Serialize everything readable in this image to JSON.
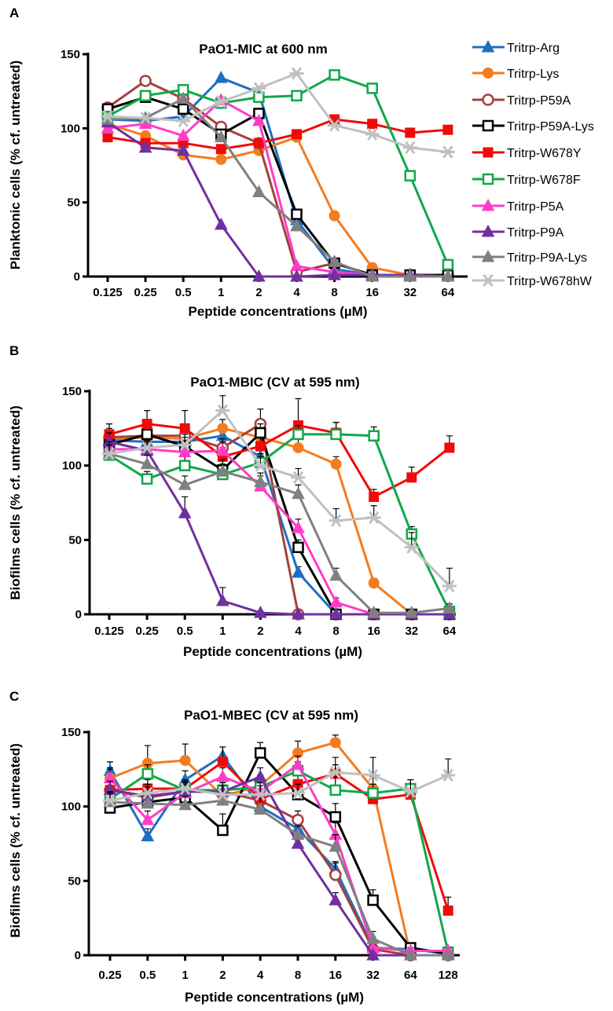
{
  "series_styles": [
    {
      "name": "Tritrp-Arg",
      "color": "#1F6FC0",
      "marker": "triangle",
      "filled": true
    },
    {
      "name": "Tritrp-Lys",
      "color": "#F47C20",
      "marker": "circle",
      "filled": true
    },
    {
      "name": "Tritrp-P59A",
      "color": "#A5403C",
      "marker": "circle",
      "filled": false
    },
    {
      "name": "Tritrp-P59A-Lys",
      "color": "#000000",
      "marker": "square",
      "filled": false
    },
    {
      "name": "Tritrp-W678Y",
      "color": "#F00A0A",
      "marker": "square",
      "filled": true
    },
    {
      "name": "Tritrp-W678F",
      "color": "#10A84A",
      "marker": "square",
      "filled": false
    },
    {
      "name": "Tritrp-P5A",
      "color": "#FF3CC8",
      "marker": "triangle",
      "filled": true
    },
    {
      "name": "Tritrp-P9A",
      "color": "#7030A0",
      "marker": "triangle",
      "filled": true
    },
    {
      "name": "Tritrp-P9A-Lys",
      "color": "#808080",
      "marker": "triangle",
      "filled": true
    },
    {
      "name": "Tritrp-W678hW",
      "color": "#C0C0C0",
      "marker": "asterisk",
      "filled": false
    }
  ],
  "legend_placement": "right of panel A",
  "chart_data": [
    {
      "panel": "A",
      "type": "line",
      "title": "PaO1-MIC at 600 nm",
      "xlabel": "Peptide concentrations (µM)",
      "ylabel": "Planktonic cells (% cf. untreated)",
      "categories": [
        "0.125",
        "0.25",
        "0.5",
        "1",
        "2",
        "4",
        "8",
        "16",
        "32",
        "64"
      ],
      "ylim": [
        0,
        150
      ],
      "yticks": [
        "0",
        "50",
        "100",
        "150"
      ],
      "grid": false,
      "series": [
        {
          "name": "Tritrp-Arg",
          "values": [
            106,
            105,
            108,
            134,
            124,
            38,
            5,
            1,
            1,
            1
          ]
        },
        {
          "name": "Tritrp-Lys",
          "values": [
            103,
            95,
            82,
            79,
            85,
            94,
            41,
            6,
            1,
            1
          ]
        },
        {
          "name": "Tritrp-P59A",
          "values": [
            114,
            132,
            120,
            101,
            90,
            3,
            9,
            1,
            1,
            1
          ]
        },
        {
          "name": "Tritrp-P59A-Lys",
          "values": [
            113,
            121,
            113,
            96,
            110,
            42,
            9,
            1,
            1,
            1
          ]
        },
        {
          "name": "Tritrp-W678Y",
          "values": [
            94,
            90,
            90,
            86,
            90,
            96,
            106,
            103,
            97,
            99
          ]
        },
        {
          "name": "Tritrp-W678F",
          "values": [
            108,
            122,
            126,
            117,
            121,
            122,
            136,
            127,
            68,
            8
          ]
        },
        {
          "name": "Tritrp-P5A",
          "values": [
            100,
            103,
            95,
            119,
            105,
            7,
            3,
            1,
            1,
            0
          ]
        },
        {
          "name": "Tritrp-P9A",
          "values": [
            104,
            87,
            85,
            35,
            0,
            0,
            1,
            1,
            1,
            0
          ]
        },
        {
          "name": "Tritrp-P9A-Lys",
          "values": [
            106,
            107,
            120,
            94,
            57,
            34,
            10,
            0,
            0,
            0
          ]
        },
        {
          "name": "Tritrp-W678hW",
          "values": [
            108,
            107,
            105,
            118,
            127,
            137,
            102,
            96,
            87,
            84
          ]
        }
      ]
    },
    {
      "panel": "B",
      "type": "line",
      "title": "PaO1-MBIC (CV at 595 nm)",
      "xlabel": "Peptide concentrations (µM)",
      "ylabel": "Biofilms cells (% cf. untreated)",
      "categories": [
        "0.125",
        "0.25",
        "0.5",
        "1",
        "2",
        "4",
        "8",
        "16",
        "32",
        "64"
      ],
      "ylim": [
        0,
        150
      ],
      "yticks": [
        "0",
        "50",
        "100",
        "150"
      ],
      "grid": false,
      "series": [
        {
          "name": "Tritrp-Arg",
          "values": [
            117,
            116,
            116,
            120,
            106,
            28,
            0,
            0,
            0,
            0
          ],
          "yerr": [
            6,
            5,
            6,
            5,
            6,
            4,
            1,
            0,
            0,
            0
          ]
        },
        {
          "name": "Tritrp-Lys",
          "values": [
            118,
            119,
            118,
            125,
            119,
            112,
            101,
            21,
            0,
            0
          ],
          "yerr": [
            6,
            6,
            6,
            6,
            6,
            8,
            5,
            3,
            0,
            0
          ]
        },
        {
          "name": "Tritrp-P59A",
          "values": [
            119,
            120,
            120,
            112,
            128,
            0,
            0,
            0,
            0,
            0
          ],
          "yerr": [
            6,
            6,
            6,
            6,
            10,
            0,
            0,
            0,
            0,
            0
          ]
        },
        {
          "name": "Tritrp-P59A-Lys",
          "values": [
            114,
            121,
            113,
            97,
            122,
            45,
            0,
            0,
            0,
            0
          ],
          "yerr": [
            6,
            6,
            6,
            6,
            6,
            5,
            0,
            0,
            0,
            0
          ]
        },
        {
          "name": "Tritrp-W678Y",
          "values": [
            121,
            128,
            125,
            106,
            113,
            127,
            122,
            79,
            92,
            112
          ],
          "yerr": [
            7,
            9,
            12,
            6,
            6,
            18,
            7,
            5,
            7,
            8
          ]
        },
        {
          "name": "Tritrp-W678F",
          "values": [
            107,
            91,
            100,
            94,
            102,
            121,
            121,
            120,
            54,
            2
          ],
          "yerr": [
            8,
            5,
            8,
            7,
            6,
            6,
            8,
            6,
            5,
            2
          ]
        },
        {
          "name": "Tritrp-P5A",
          "values": [
            111,
            111,
            109,
            110,
            86,
            58,
            8,
            0,
            0,
            0
          ],
          "yerr": [
            6,
            6,
            6,
            6,
            7,
            6,
            3,
            0,
            0,
            0
          ]
        },
        {
          "name": "Tritrp-P9A",
          "values": [
            116,
            110,
            68,
            9,
            1,
            0,
            0,
            0,
            0,
            0
          ],
          "yerr": [
            6,
            6,
            11,
            9,
            1,
            0,
            0,
            0,
            0,
            0
          ]
        },
        {
          "name": "Tritrp-P9A-Lys",
          "values": [
            108,
            101,
            87,
            96,
            89,
            81,
            26,
            1,
            1,
            4
          ],
          "yerr": [
            6,
            6,
            6,
            8,
            6,
            6,
            5,
            1,
            1,
            3
          ]
        },
        {
          "name": "Tritrp-W678hW",
          "values": [
            108,
            112,
            114,
            137,
            100,
            92,
            63,
            65,
            45,
            19
          ],
          "yerr": [
            8,
            6,
            7,
            10,
            6,
            6,
            8,
            8,
            10,
            12
          ]
        }
      ]
    },
    {
      "panel": "C",
      "type": "line",
      "title": "PaO1-MBEC (CV at 595 nm)",
      "xlabel": "Peptide concentrations (µM)",
      "ylabel": "Biofilms cells (% cf. untreated)",
      "categories": [
        "0.25",
        "0.5",
        "1",
        "2",
        "4",
        "8",
        "16",
        "32",
        "64",
        "128"
      ],
      "ylim": [
        0,
        150
      ],
      "yticks": [
        "0",
        "50",
        "100",
        "150"
      ],
      "grid": false,
      "series": [
        {
          "name": "Tritrp-Arg",
          "values": [
            124,
            80,
            118,
            134,
            100,
            85,
            58,
            5,
            4,
            1
          ],
          "yerr": [
            6,
            5,
            6,
            6,
            6,
            6,
            5,
            2,
            2,
            1
          ]
        },
        {
          "name": "Tritrp-Lys",
          "values": [
            119,
            129,
            131,
            107,
            114,
            136,
            143,
            112,
            0,
            0
          ],
          "yerr": [
            7,
            12,
            11,
            6,
            7,
            8,
            5,
            8,
            0,
            0
          ]
        },
        {
          "name": "Tritrp-P59A",
          "values": [
            111,
            106,
            110,
            110,
            104,
            91,
            54,
            4,
            0,
            0
          ],
          "yerr": [
            6,
            6,
            6,
            6,
            6,
            6,
            8,
            2,
            0,
            0
          ]
        },
        {
          "name": "Tritrp-P59A-Lys",
          "values": [
            99,
            103,
            106,
            84,
            136,
            108,
            93,
            37,
            5,
            1
          ],
          "yerr": [
            9,
            6,
            6,
            11,
            7,
            8,
            9,
            7,
            3,
            1
          ]
        },
        {
          "name": "Tritrp-W678Y",
          "values": [
            111,
            112,
            112,
            130,
            105,
            115,
            122,
            105,
            108,
            30
          ],
          "yerr": [
            6,
            6,
            6,
            10,
            6,
            6,
            6,
            6,
            6,
            9
          ]
        },
        {
          "name": "Tritrp-W678F",
          "values": [
            105,
            122,
            111,
            111,
            113,
            124,
            111,
            109,
            112,
            2
          ],
          "yerr": [
            6,
            6,
            6,
            6,
            6,
            6,
            9,
            6,
            6,
            2
          ]
        },
        {
          "name": "Tritrp-P5A",
          "values": [
            119,
            91,
            109,
            120,
            110,
            128,
            81,
            5,
            3,
            3
          ],
          "yerr": [
            6,
            6,
            6,
            6,
            6,
            6,
            8,
            2,
            2,
            2
          ]
        },
        {
          "name": "Tritrp-P9A",
          "values": [
            111,
            107,
            110,
            110,
            120,
            75,
            37,
            0,
            0,
            0
          ],
          "yerr": [
            6,
            6,
            6,
            6,
            6,
            6,
            5,
            0,
            0,
            0
          ]
        },
        {
          "name": "Tritrp-P9A-Lys",
          "values": [
            103,
            102,
            101,
            104,
            98,
            81,
            73,
            11,
            0,
            0
          ],
          "yerr": [
            6,
            6,
            6,
            6,
            8,
            6,
            8,
            5,
            0,
            0
          ]
        },
        {
          "name": "Tritrp-W678hW",
          "values": [
            104,
            109,
            112,
            108,
            108,
            109,
            123,
            121,
            110,
            121
          ],
          "yerr": [
            6,
            6,
            6,
            6,
            6,
            6,
            10,
            12,
            8,
            11
          ]
        }
      ]
    }
  ]
}
